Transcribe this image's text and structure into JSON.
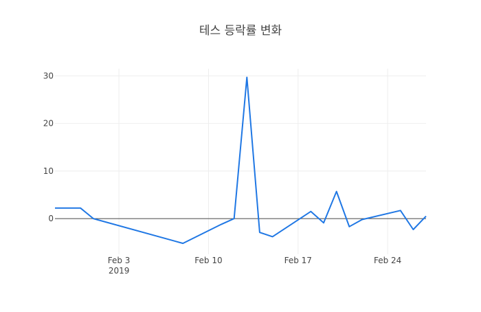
{
  "chart_data": {
    "type": "line",
    "title": "테스 등락률 변화",
    "xlabel": "",
    "ylabel": "",
    "x_ticks": [
      {
        "date": "2019-02-03",
        "label": "Feb 3",
        "sublabel": "2019"
      },
      {
        "date": "2019-02-10",
        "label": "Feb 10",
        "sublabel": ""
      },
      {
        "date": "2019-02-17",
        "label": "Feb 17",
        "sublabel": ""
      },
      {
        "date": "2019-02-24",
        "label": "Feb 24",
        "sublabel": ""
      }
    ],
    "y_ticks": [
      0,
      10,
      20,
      30
    ],
    "xlim": [
      "2019-01-29",
      "2019-02-27"
    ],
    "ylim": [
      -7.5,
      31.5
    ],
    "grid": true,
    "zero_line": true,
    "series": [
      {
        "name": "",
        "color": "#1f77e4",
        "x": [
          "2019-01-29",
          "2019-01-30",
          "2019-01-31",
          "2019-02-01",
          "2019-02-08",
          "2019-02-11",
          "2019-02-12",
          "2019-02-13",
          "2019-02-14",
          "2019-02-15",
          "2019-02-18",
          "2019-02-19",
          "2019-02-20",
          "2019-02-21",
          "2019-02-22",
          "2019-02-25",
          "2019-02-26",
          "2019-02-27"
        ],
        "y": [
          2.2,
          2.2,
          2.2,
          0.0,
          -5.2,
          -1.2,
          0.0,
          29.7,
          -2.9,
          -3.8,
          1.5,
          -0.9,
          5.7,
          -1.7,
          -0.2,
          1.7,
          -2.3,
          0.5
        ]
      }
    ]
  }
}
